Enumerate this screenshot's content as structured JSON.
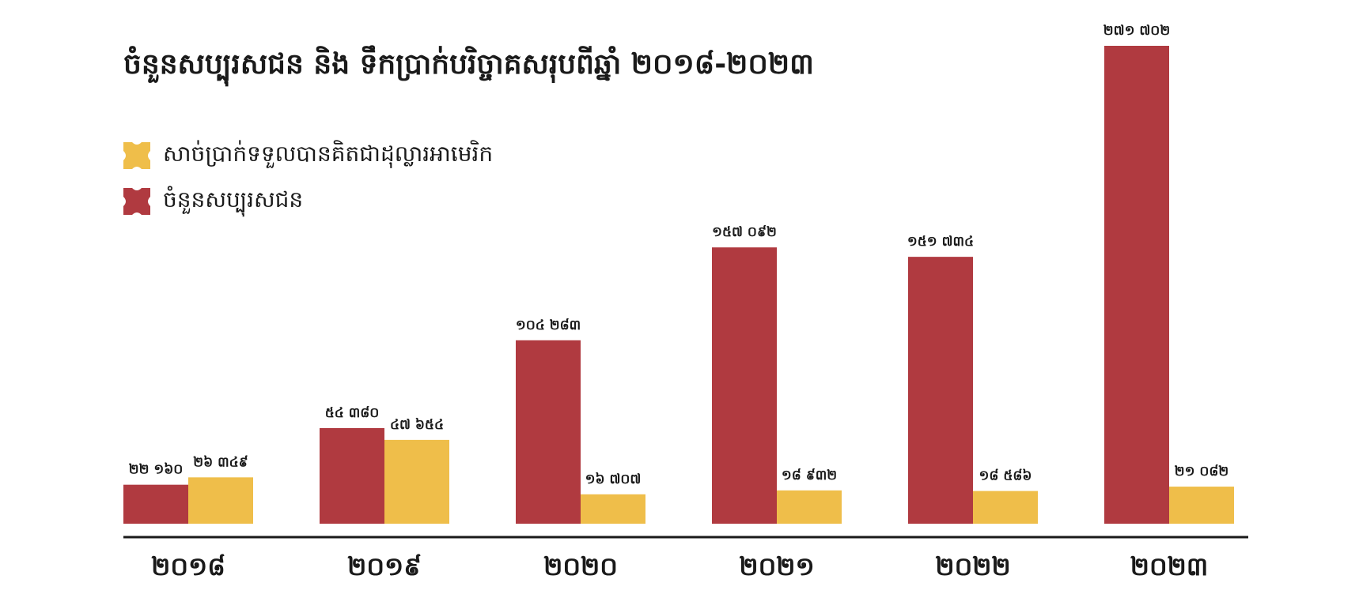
{
  "colors": {
    "visitors": "#b03a40",
    "revenue": "#efbe4a",
    "axis": "#1a1a1a",
    "text": "#1a1a1a"
  },
  "legend": {
    "revenue_label": "សាច់ប្រាក់ទទួលបានគិតជាដុល្លារអាមេរិក",
    "visitors_label": "ចំនួនសប្បុរសជន",
    "revenue_icon": "cross-shape-icon",
    "visitors_icon": "cross-shape-icon"
  },
  "chart_data": {
    "type": "bar",
    "title": "ចំនួនសប្បុរសជន និង ទឹកប្រាក់បរិច្ចាគសរុបពីឆ្នាំ ២០១៨-២០២៣",
    "categories": [
      "២០១៨",
      "២០១៩",
      "២០២០",
      "២០២១",
      "២០២២",
      "២០២៣"
    ],
    "series": [
      {
        "name": "ចំនួនសប្បុរសជន",
        "color": "#b03a40",
        "values": [
          22160,
          54380,
          104283,
          157092,
          151734,
          271702
        ],
        "labels": [
          "២២ ១៦០",
          "៥៤ ៣៨០",
          "១០៤ ២៨៣",
          "១៥៧ ០៩២",
          "១៥១ ៧៣៤",
          "២៧១ ៧០២"
        ]
      },
      {
        "name": "សាច់ប្រាក់ទទួលបានគិតជាដុល្លារអាមេរិក",
        "color": "#efbe4a",
        "values": [
          26349,
          47654,
          16707,
          18932,
          18586,
          21082
        ],
        "labels": [
          "២៦ ៣៤៩",
          "៤៧ ៦៥៤",
          "១៦ ៧០៧",
          "១៨ ៩៣២",
          "១៨ ៥៨៦",
          "២១ ០៨២"
        ]
      }
    ],
    "legend_position": "top-left",
    "grid": false,
    "xlabel": "",
    "ylabel": ""
  }
}
